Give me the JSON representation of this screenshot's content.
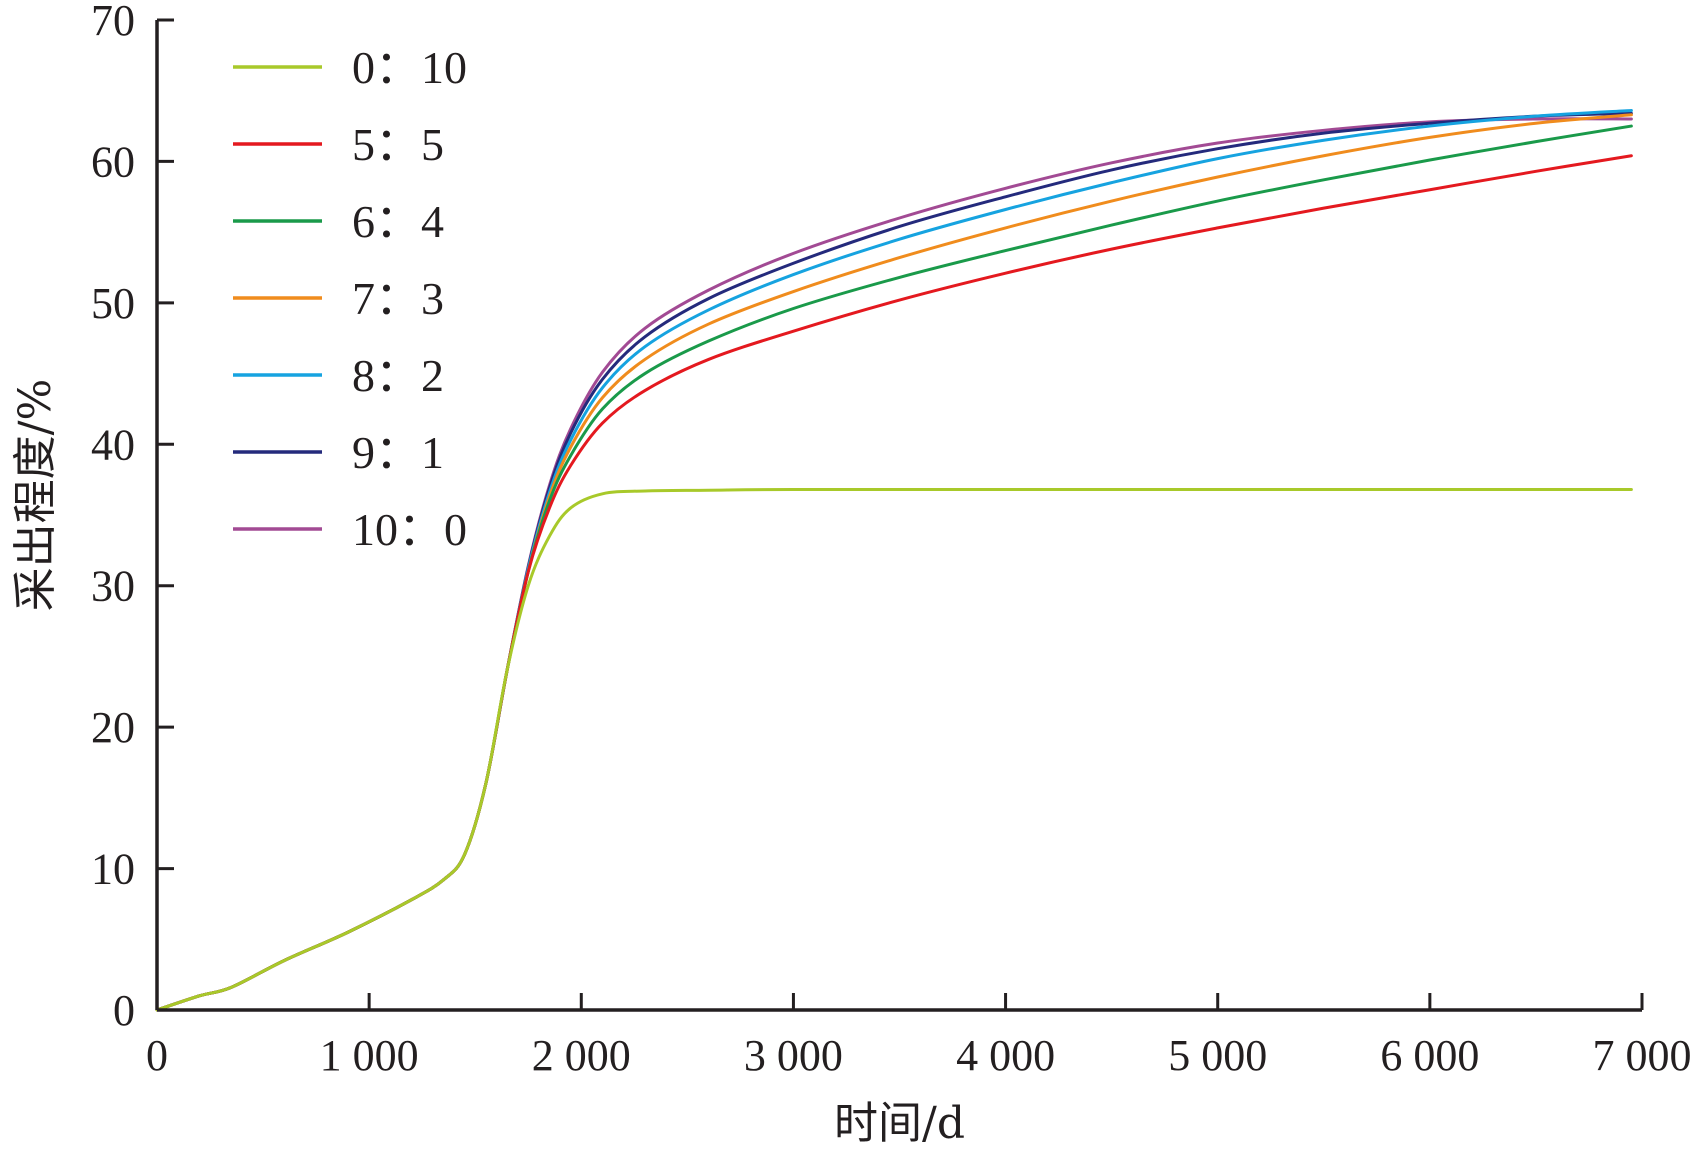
{
  "chart_data": {
    "type": "line",
    "title": "",
    "xlabel": "时间/d",
    "ylabel": "采出程度/%",
    "xlim": [
      0,
      7000
    ],
    "ylim": [
      0,
      70
    ],
    "xticks": [
      {
        "value": 0,
        "label": "0"
      },
      {
        "value": 1000,
        "label": "1 000"
      },
      {
        "value": 2000,
        "label": "2 000"
      },
      {
        "value": 3000,
        "label": "3 000"
      },
      {
        "value": 4000,
        "label": "4 000"
      },
      {
        "value": 5000,
        "label": "5 000"
      },
      {
        "value": 6000,
        "label": "6 000"
      },
      {
        "value": 7000,
        "label": "7 000"
      }
    ],
    "yticks": [
      {
        "value": 0,
        "label": "0"
      },
      {
        "value": 10,
        "label": "10"
      },
      {
        "value": 20,
        "label": "20"
      },
      {
        "value": 30,
        "label": "30"
      },
      {
        "value": 40,
        "label": "40"
      },
      {
        "value": 50,
        "label": "50"
      },
      {
        "value": 60,
        "label": "60"
      },
      {
        "value": 70,
        "label": "70"
      }
    ],
    "grid": false,
    "legend_position": "top-left",
    "series": [
      {
        "name": "0：10",
        "color": "#a8c92a",
        "x": [
          0,
          200,
          350,
          600,
          900,
          1200,
          1350,
          1450,
          1550,
          1650,
          1750,
          1850,
          1950,
          2100,
          2300,
          2600,
          3000,
          4000,
          5000,
          6000,
          6950
        ],
        "y": [
          0,
          1.0,
          1.6,
          3.5,
          5.5,
          7.8,
          9.2,
          11,
          16,
          24,
          30,
          33.5,
          35.5,
          36.5,
          36.7,
          36.75,
          36.8,
          36.8,
          36.8,
          36.8,
          36.8
        ]
      },
      {
        "name": "5：5",
        "color": "#e4191f",
        "x": [
          0,
          200,
          350,
          600,
          900,
          1200,
          1350,
          1450,
          1550,
          1650,
          1750,
          1850,
          1950,
          2100,
          2300,
          2600,
          3000,
          3500,
          4000,
          4500,
          5000,
          5500,
          6000,
          6500,
          6950
        ],
        "y": [
          0,
          1.0,
          1.6,
          3.5,
          5.5,
          7.8,
          9.2,
          11,
          16,
          24,
          31,
          35.5,
          38.5,
          41.5,
          43.8,
          46,
          48,
          50.2,
          52.1,
          53.8,
          55.3,
          56.7,
          58.0,
          59.3,
          60.4
        ]
      },
      {
        "name": "6：4",
        "color": "#1a9a4a",
        "x": [
          0,
          200,
          350,
          600,
          900,
          1200,
          1350,
          1450,
          1550,
          1650,
          1750,
          1850,
          1950,
          2100,
          2300,
          2600,
          3000,
          3500,
          4000,
          4500,
          5000,
          5500,
          6000,
          6500,
          6950
        ],
        "y": [
          0,
          1.0,
          1.6,
          3.5,
          5.5,
          7.8,
          9.2,
          11,
          16,
          24,
          31,
          36,
          39.2,
          42.5,
          45,
          47.3,
          49.6,
          51.8,
          53.7,
          55.5,
          57.2,
          58.7,
          60.1,
          61.4,
          62.5
        ]
      },
      {
        "name": "7：3",
        "color": "#f08c1d",
        "x": [
          0,
          200,
          350,
          600,
          900,
          1200,
          1350,
          1450,
          1550,
          1650,
          1750,
          1850,
          1950,
          2100,
          2300,
          2600,
          3000,
          3500,
          4000,
          4500,
          5000,
          5500,
          6000,
          6500,
          6950
        ],
        "y": [
          0,
          1.0,
          1.6,
          3.5,
          5.5,
          7.8,
          9.2,
          11,
          16,
          24,
          31,
          36.3,
          39.8,
          43.3,
          46,
          48.5,
          50.8,
          53.2,
          55.3,
          57.2,
          58.9,
          60.4,
          61.7,
          62.7,
          63.3
        ]
      },
      {
        "name": "8：2",
        "color": "#16a3e0",
        "x": [
          0,
          200,
          350,
          600,
          900,
          1200,
          1350,
          1450,
          1550,
          1650,
          1750,
          1850,
          1950,
          2100,
          2300,
          2600,
          3000,
          3500,
          4000,
          4500,
          5000,
          5500,
          6000,
          6500,
          6950
        ],
        "y": [
          0,
          1.0,
          1.6,
          3.5,
          5.5,
          7.8,
          9.2,
          11,
          16,
          24,
          31.2,
          36.6,
          40.3,
          44,
          46.9,
          49.5,
          52,
          54.5,
          56.6,
          58.5,
          60.2,
          61.5,
          62.5,
          63.2,
          63.6
        ]
      },
      {
        "name": "9：1",
        "color": "#242a7c",
        "x": [
          0,
          200,
          350,
          600,
          900,
          1200,
          1350,
          1450,
          1550,
          1650,
          1750,
          1850,
          1950,
          2100,
          2300,
          2600,
          3000,
          3500,
          4000,
          4500,
          5000,
          5500,
          6000,
          6500,
          6950
        ],
        "y": [
          0,
          1.0,
          1.6,
          3.5,
          5.5,
          7.8,
          9.2,
          11,
          16,
          24,
          31.3,
          36.9,
          40.8,
          44.6,
          47.6,
          50.3,
          52.8,
          55.4,
          57.5,
          59.4,
          60.9,
          62.0,
          62.7,
          63.2,
          63.4
        ]
      },
      {
        "name": "10：0",
        "color": "#a24a94",
        "x": [
          0,
          200,
          350,
          600,
          900,
          1200,
          1350,
          1450,
          1550,
          1650,
          1750,
          1850,
          1950,
          2100,
          2300,
          2600,
          3000,
          3500,
          4000,
          4500,
          5000,
          5500,
          6000,
          6500,
          6950
        ],
        "y": [
          0,
          1.0,
          1.6,
          3.5,
          5.5,
          7.8,
          9.2,
          11,
          16,
          24,
          31.4,
          37.1,
          41.1,
          45.1,
          48.2,
          50.9,
          53.5,
          56,
          58.1,
          59.9,
          61.3,
          62.2,
          62.8,
          63.0,
          63.0
        ]
      }
    ]
  }
}
